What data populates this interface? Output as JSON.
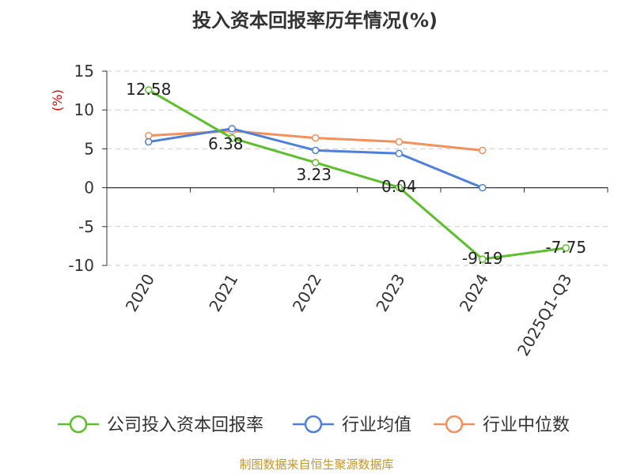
{
  "chart_data": {
    "type": "line",
    "title": "投入资本回报率历年情况(%)",
    "ylabel": "(%)",
    "xlabel": "",
    "categories": [
      "2020",
      "2021",
      "2022",
      "2023",
      "2024",
      "2025Q1-Q3"
    ],
    "ylim": [
      -10,
      15
    ],
    "yticks": [
      "15",
      "10",
      "5",
      "0",
      "-5",
      "-10"
    ],
    "grid": true,
    "legend_position": "bottom",
    "series": [
      {
        "name": "公司投入资本回报率",
        "color": "#5cc02a",
        "values": [
          12.58,
          6.38,
          3.23,
          0.04,
          -9.19,
          -7.75
        ],
        "labels": [
          "12.58",
          "6.38",
          "3.23",
          "0.04",
          "-9.19",
          "-7.75"
        ]
      },
      {
        "name": "行业均值",
        "color": "#4e7fdc",
        "values": [
          5.9,
          7.6,
          4.8,
          4.4,
          0.0,
          null
        ]
      },
      {
        "name": "行业中位数",
        "color": "#f4905c",
        "values": [
          6.7,
          7.3,
          6.4,
          5.9,
          4.8,
          null
        ]
      }
    ],
    "source": "制图数据来自恒生聚源数据库"
  }
}
